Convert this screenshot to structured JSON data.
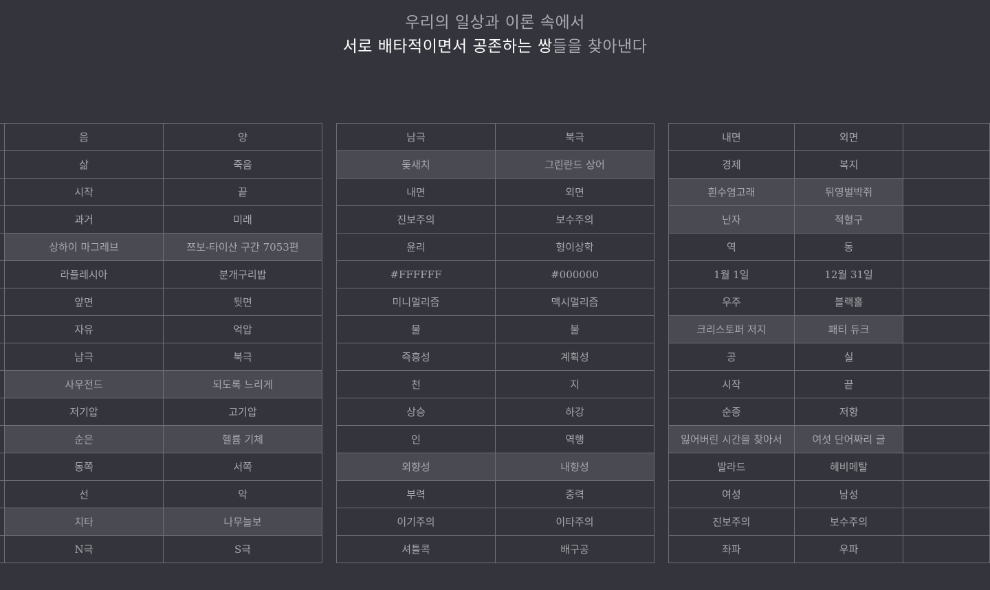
{
  "header": {
    "line1": "우리의 일상과 이론 속에서",
    "line2_main": "서로 배타적이면서 공존하는 쌍",
    "line2_tail": "들을 찾아낸다"
  },
  "groups": [
    {
      "rows": [
        {
          "a": "음",
          "b": "양",
          "highlight": false
        },
        {
          "a": "삶",
          "b": "죽음",
          "highlight": false
        },
        {
          "a": "시작",
          "b": "끝",
          "highlight": false
        },
        {
          "a": "과거",
          "b": "미래",
          "highlight": false
        },
        {
          "a": "상하이 마그레브",
          "b": "쯔보-타이산 구간 7053편",
          "highlight": true
        },
        {
          "a": "라플레시아",
          "b": "분개구리밥",
          "highlight": false
        },
        {
          "a": "앞면",
          "b": "뒷면",
          "highlight": false
        },
        {
          "a": "자유",
          "b": "억압",
          "highlight": false
        },
        {
          "a": "남극",
          "b": "북극",
          "highlight": false
        },
        {
          "a": "사우전드",
          "b": "되도록 느리게",
          "highlight": true
        },
        {
          "a": "저기압",
          "b": "고기압",
          "highlight": false
        },
        {
          "a": "순은",
          "b": "헬륨 기체",
          "highlight": true
        },
        {
          "a": "동쪽",
          "b": "서쪽",
          "highlight": false
        },
        {
          "a": "선",
          "b": "악",
          "highlight": false
        },
        {
          "a": "치타",
          "b": "나무늘보",
          "highlight": true
        },
        {
          "a": "N극",
          "b": "S극",
          "highlight": false
        }
      ]
    },
    {
      "rows": [
        {
          "a": "남극",
          "b": "북극",
          "highlight": false
        },
        {
          "a": "돛새치",
          "b": "그린란드 상어",
          "highlight": true
        },
        {
          "a": "내면",
          "b": "외면",
          "highlight": false
        },
        {
          "a": "진보주의",
          "b": "보수주의",
          "highlight": false
        },
        {
          "a": "윤리",
          "b": "형이상학",
          "highlight": false
        },
        {
          "a": "#FFFFFF",
          "b": "#000000",
          "highlight": false
        },
        {
          "a": "미니멀리즘",
          "b": "맥시멀리즘",
          "highlight": false
        },
        {
          "a": "물",
          "b": "불",
          "highlight": false
        },
        {
          "a": "즉흥성",
          "b": "계획성",
          "highlight": false
        },
        {
          "a": "천",
          "b": "지",
          "highlight": false
        },
        {
          "a": "상승",
          "b": "하강",
          "highlight": false
        },
        {
          "a": "인",
          "b": "역행",
          "highlight": false
        },
        {
          "a": "외향성",
          "b": "내향성",
          "highlight": true
        },
        {
          "a": "부력",
          "b": "중력",
          "highlight": false
        },
        {
          "a": "이기주의",
          "b": "이타주의",
          "highlight": false
        },
        {
          "a": "셔틀콕",
          "b": "배구공",
          "highlight": false
        }
      ]
    },
    {
      "rows": [
        {
          "a": "내면",
          "b": "외면",
          "highlight": false
        },
        {
          "a": "경제",
          "b": "복지",
          "highlight": false
        },
        {
          "a": "흰수염고래",
          "b": "뒤영벌박쥐",
          "highlight": true
        },
        {
          "a": "난자",
          "b": "적혈구",
          "highlight": true
        },
        {
          "a": "역",
          "b": "동",
          "highlight": false
        },
        {
          "a": "1월 1일",
          "b": "12월 31일",
          "highlight": false
        },
        {
          "a": "우주",
          "b": "블랙홀",
          "highlight": false
        },
        {
          "a": "크리스토퍼 저지",
          "b": "패티 듀크",
          "highlight": true
        },
        {
          "a": "공",
          "b": "실",
          "highlight": false
        },
        {
          "a": "시작",
          "b": "끝",
          "highlight": false
        },
        {
          "a": "순종",
          "b": "저항",
          "highlight": false
        },
        {
          "a": "잃어버린 시간을 찾아서",
          "b": "여섯 단어짜리 글",
          "highlight": true
        },
        {
          "a": "발라드",
          "b": "헤비메탈",
          "highlight": false
        },
        {
          "a": "여성",
          "b": "남성",
          "highlight": false
        },
        {
          "a": "진보주의",
          "b": "보수주의",
          "highlight": false
        },
        {
          "a": "좌파",
          "b": "우파",
          "highlight": false
        }
      ]
    }
  ]
}
